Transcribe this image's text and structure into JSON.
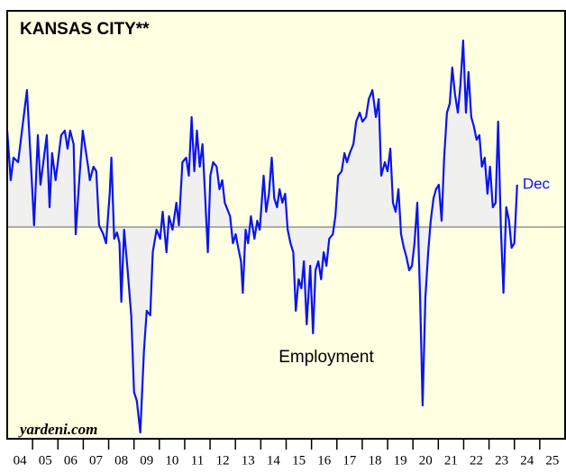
{
  "chart_data": {
    "type": "line",
    "title": "KANSAS CITY**",
    "annotation": "Employment",
    "end_label": "Dec",
    "source": "yardeni.com",
    "color": "#0a14f0",
    "fill_color": "#f0f0ee",
    "background": "#ffffe2",
    "reference_line": 0,
    "xlim": [
      2004,
      2026
    ],
    "ylim": [
      -2.35,
      2.4
    ],
    "xticks": [
      {
        "value": 2004.5,
        "label": "04"
      },
      {
        "value": 2005.5,
        "label": "05"
      },
      {
        "value": 2006.5,
        "label": "06"
      },
      {
        "value": 2007.5,
        "label": "07"
      },
      {
        "value": 2008.5,
        "label": "08"
      },
      {
        "value": 2009.5,
        "label": "09"
      },
      {
        "value": 2010.5,
        "label": "10"
      },
      {
        "value": 2011.5,
        "label": "11"
      },
      {
        "value": 2012.5,
        "label": "12"
      },
      {
        "value": 2013.5,
        "label": "13"
      },
      {
        "value": 2014.5,
        "label": "14"
      },
      {
        "value": 2015.5,
        "label": "15"
      },
      {
        "value": 2016.5,
        "label": "16"
      },
      {
        "value": 2017.5,
        "label": "17"
      },
      {
        "value": 2018.5,
        "label": "18"
      },
      {
        "value": 2019.5,
        "label": "19"
      },
      {
        "value": 2020.5,
        "label": "20"
      },
      {
        "value": 2021.5,
        "label": "21"
      },
      {
        "value": 2022.5,
        "label": "22"
      },
      {
        "value": 2023.5,
        "label": "23"
      },
      {
        "value": 2024.5,
        "label": "24"
      },
      {
        "value": 2025.5,
        "label": "25"
      }
    ],
    "x": [
      2004.0,
      2004.14,
      2004.25,
      2004.43,
      2004.78,
      2004.96,
      2005.06,
      2005.21,
      2005.31,
      2005.56,
      2005.67,
      2005.77,
      2005.91,
      2006.13,
      2006.27,
      2006.38,
      2006.48,
      2006.62,
      2006.7,
      2006.84,
      2006.98,
      2007.19,
      2007.26,
      2007.4,
      2007.51,
      2007.62,
      2007.79,
      2007.9,
      2008.04,
      2008.11,
      2008.22,
      2008.33,
      2008.43,
      2008.5,
      2008.61,
      2008.75,
      2008.89,
      2009.0,
      2009.11,
      2009.25,
      2009.39,
      2009.5,
      2009.64,
      2009.74,
      2009.89,
      2010.03,
      2010.13,
      2010.28,
      2010.38,
      2010.52,
      2010.67,
      2010.77,
      2010.91,
      2011.06,
      2011.16,
      2011.27,
      2011.38,
      2011.48,
      2011.59,
      2011.7,
      2011.8,
      2011.91,
      2012.01,
      2012.12,
      2012.26,
      2012.37,
      2012.48,
      2012.58,
      2012.79,
      2012.9,
      2013.01,
      2013.11,
      2013.22,
      2013.29,
      2013.4,
      2013.5,
      2013.61,
      2013.75,
      2013.86,
      2013.96,
      2014.11,
      2014.21,
      2014.32,
      2014.43,
      2014.53,
      2014.64,
      2014.74,
      2014.85,
      2014.96,
      2015.06,
      2015.17,
      2015.28,
      2015.38,
      2015.49,
      2015.6,
      2015.7,
      2015.81,
      2015.95,
      2016.06,
      2016.16,
      2016.27,
      2016.38,
      2016.48,
      2016.59,
      2016.7,
      2016.84,
      2016.94,
      2017.05,
      2017.19,
      2017.3,
      2017.4,
      2017.51,
      2017.65,
      2017.76,
      2017.9,
      2018.01,
      2018.15,
      2018.26,
      2018.4,
      2018.54,
      2018.65,
      2018.75,
      2018.89,
      2019.0,
      2019.11,
      2019.21,
      2019.32,
      2019.43,
      2019.53,
      2019.64,
      2019.74,
      2019.85,
      2019.96,
      2020.06,
      2020.17,
      2020.28,
      2020.38,
      2020.49,
      2020.6,
      2020.7,
      2020.81,
      2020.91,
      2021.02,
      2021.13,
      2021.23,
      2021.34,
      2021.45,
      2021.55,
      2021.66,
      2021.77,
      2021.87,
      2021.98,
      2022.09,
      2022.19,
      2022.3,
      2022.4,
      2022.51,
      2022.62,
      2022.72,
      2022.83,
      2022.94,
      2023.04,
      2023.15,
      2023.26,
      2023.36,
      2023.47,
      2023.57,
      2023.68,
      2023.79,
      2023.89,
      2024.0,
      2024.11
    ],
    "values": [
      1.07,
      0.52,
      0.77,
      0.72,
      1.52,
      0.57,
      0.02,
      1.02,
      0.47,
      1.02,
      0.22,
      0.82,
      0.52,
      1.02,
      1.07,
      0.87,
      1.07,
      0.92,
      -0.08,
      0.52,
      1.07,
      0.67,
      0.52,
      0.67,
      0.62,
      0.02,
      -0.08,
      -0.18,
      0.37,
      0.77,
      -0.13,
      -0.06,
      -0.18,
      -0.83,
      -0.03,
      -0.48,
      -0.98,
      -1.83,
      -1.93,
      -2.28,
      -1.38,
      -0.93,
      -0.98,
      -0.28,
      -0.03,
      -0.13,
      0.17,
      -0.28,
      0.12,
      -0.03,
      0.27,
      0.02,
      0.72,
      0.77,
      0.57,
      1.22,
      0.62,
      1.07,
      0.67,
      0.92,
      0.37,
      -0.28,
      0.57,
      0.72,
      0.67,
      0.42,
      0.52,
      0.27,
      0.12,
      -0.18,
      -0.08,
      -0.23,
      -0.38,
      -0.73,
      -0.03,
      -0.18,
      0.12,
      -0.13,
      0.07,
      -0.03,
      0.57,
      0.17,
      0.37,
      0.77,
      0.32,
      0.22,
      0.42,
      0.27,
      0.37,
      -0.03,
      -0.18,
      -0.28,
      -0.93,
      -0.58,
      -0.68,
      -0.38,
      -1.08,
      -0.43,
      -1.18,
      -0.48,
      -0.38,
      -0.58,
      -0.28,
      -0.43,
      -0.13,
      -0.08,
      0.12,
      0.57,
      0.62,
      0.82,
      0.72,
      0.82,
      0.92,
      1.17,
      1.27,
      1.17,
      1.22,
      1.42,
      1.52,
      1.22,
      1.42,
      0.57,
      0.72,
      0.62,
      0.87,
      0.27,
      0.17,
      0.42,
      -0.08,
      -0.23,
      -0.33,
      -0.48,
      -0.43,
      -0.18,
      0.27,
      -0.78,
      -1.98,
      -0.78,
      -0.28,
      0.07,
      0.32,
      0.42,
      0.47,
      0.07,
      0.77,
      1.27,
      1.37,
      1.77,
      1.47,
      1.27,
      1.57,
      2.07,
      1.27,
      1.72,
      1.22,
      1.12,
      0.97,
      1.02,
      0.67,
      0.77,
      0.37,
      0.67,
      0.22,
      0.27,
      1.17,
      -0.03,
      -0.73,
      0.22,
      0.07,
      -0.23,
      -0.18,
      0.47
    ]
  }
}
